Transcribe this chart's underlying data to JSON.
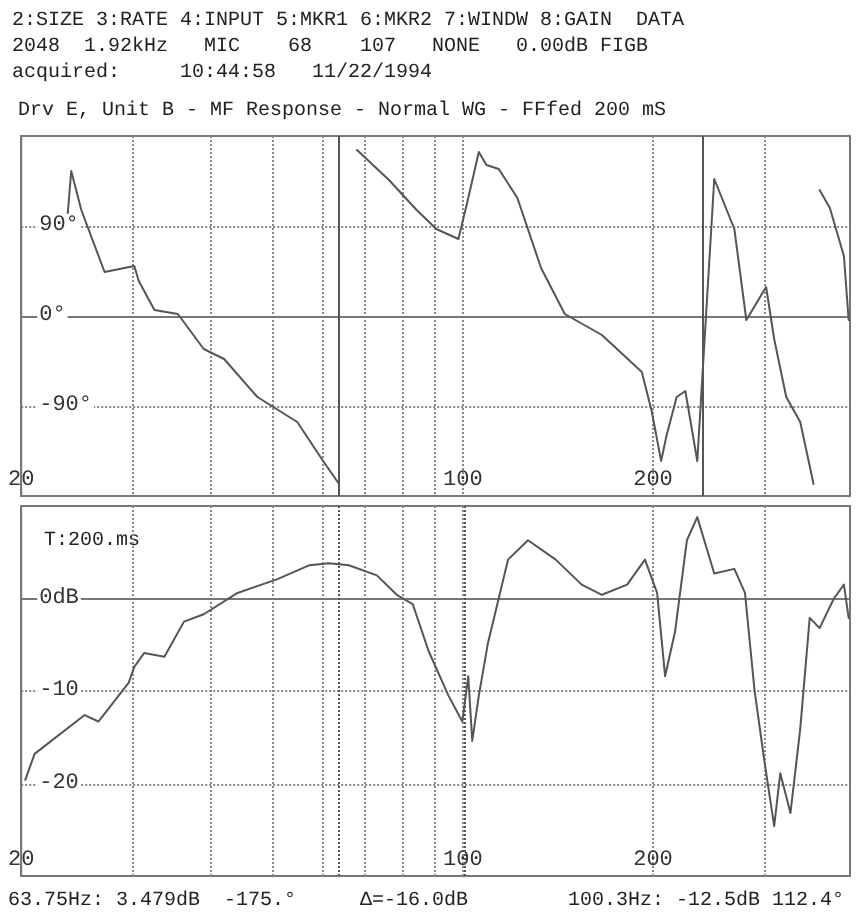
{
  "chart_data": [
    {
      "type": "line",
      "title": "Drv E, Unit B - MF Response - Normal WG - FFfed 200 mS",
      "annotations": [
        "2:SIZE 3:RATE 4:INPUT 5:MKR1 6:MKR2 7:WINDW 8:GAIN  DATA",
        "2048  1.92kHz   MIC    68    107   NONE   0.00dB FIGB",
        "acquired:     10:44:58   11/22/1994"
      ],
      "series": [
        {
          "color": "#555555",
          "x": [
            23.7,
            24.0,
            24.9,
            27.1,
            30.2,
            30.7,
            32.5,
            35.4,
            38.9,
            41.9,
            47.3,
            54.7,
            60.1,
            63.7,
            64.5,
            68.0,
            76.4,
            84.5,
            90.8,
            98.4,
            102,
            106,
            109,
            114,
            122,
            133,
            145,
            166,
            192,
            199,
            206,
            210,
            218,
            225,
            235,
            250,
            269,
            281,
            302,
            311,
            325,
            342,
            359,
            363,
            367,
            381,
            401,
            408
          ],
          "values": [
            103,
            145,
            106,
            44,
            50,
            35,
            6,
            2,
            -33,
            -43,
            -81,
            -106,
            -145,
            -168,
            null,
            166,
            136,
            106,
            87,
            77,
            118,
            164,
            151,
            147,
            118,
            48,
            2,
            -19,
            -56,
            -95,
            -145,
            -120,
            -81,
            -75,
            -145,
            137,
            87,
            -4,
            29,
            -23,
            -81,
            -106,
            -168,
            null,
            126,
            108,
            60,
            -4
          ]
        }
      ],
      "xlim": [
        20,
        410
      ],
      "xticks": [
        20,
        {
          "value": 30,
          "label": null
        },
        {
          "value": 40,
          "label": null
        },
        {
          "value": 50,
          "label": null
        },
        {
          "value": 60,
          "label": null
        },
        {
          "value": 70,
          "label": null
        },
        {
          "value": 80,
          "label": null
        },
        {
          "value": 90,
          "label": null
        },
        100,
        200,
        {
          "value": 300,
          "label": null
        }
      ],
      "ylim": [
        -180,
        180
      ],
      "yticks": [
        {
          "value": -90,
          "label": "-90°"
        },
        {
          "value": 0,
          "label": "0°"
        },
        {
          "value": 90,
          "label": "90°"
        }
      ],
      "log": "x",
      "grid": true,
      "marker": "none",
      "ref_lines": [
        {
          "axis": "x",
          "value": 63.75,
          "line_style": "solid",
          "color": "#555555"
        },
        {
          "axis": "x",
          "value": 240,
          "line_style": "solid",
          "color": "#555555"
        }
      ]
    },
    {
      "type": "line",
      "annotations": [
        "T:200.ms",
        "63.75Hz: 3.479dB  -175.°",
        "Δ=-16.0dB",
        "100.3Hz: -12.5dB 112.4°"
      ],
      "series": [
        {
          "color": "#555555",
          "x": [
            20.3,
            21.0,
            25.2,
            26.5,
            29.6,
            30.2,
            31.3,
            33.7,
            36.2,
            38.9,
            44.0,
            50.9,
            57.2,
            61.4,
            66.0,
            73.1,
            78.6,
            83.3,
            88.3,
            94.9,
            99.8,
            102,
            103.5,
            106,
            109.6,
            117.9,
            126.8,
            140.3,
            154.2,
            166,
            182,
            194.2,
            203,
            209,
            216.7,
            226.3,
            235,
            250,
            269,
            279.6,
            289.5,
            300,
            311,
            318,
            330,
            342,
            354,
            367,
            386.6,
            401,
            408
          ],
          "values": [
            -19.6,
            -16.8,
            -12.6,
            -13.3,
            -9.1,
            -7.4,
            -5.9,
            -6.3,
            -2.5,
            -1.7,
            0.6,
            2.1,
            3.6,
            3.8,
            3.6,
            2.5,
            0.4,
            -0.6,
            -5.7,
            -10.5,
            -13.3,
            -8.4,
            -15.4,
            -10.5,
            -4.8,
            4.2,
            6.3,
            4.2,
            1.5,
            0.4,
            1.5,
            4.2,
            0.6,
            -8.4,
            -3.6,
            6.3,
            8.8,
            2.7,
            3.2,
            0.6,
            -9.9,
            -17.5,
            -24.6,
            -18.9,
            -23.2,
            -14.1,
            -2.1,
            -3.2,
            0,
            1.5,
            -2.1
          ]
        }
      ],
      "xlim": [
        20,
        410
      ],
      "xticks": [
        20,
        {
          "value": 30,
          "label": null
        },
        {
          "value": 40,
          "label": null
        },
        {
          "value": 50,
          "label": null
        },
        {
          "value": 60,
          "label": null
        },
        {
          "value": 70,
          "label": null
        },
        {
          "value": 80,
          "label": null
        },
        {
          "value": 90,
          "label": null
        },
        100,
        200,
        {
          "value": 300,
          "label": null
        }
      ],
      "ylim": [
        -30,
        10
      ],
      "yticks": [
        {
          "value": -20,
          "label": "-20"
        },
        {
          "value": -10,
          "label": "-10"
        },
        {
          "value": 0,
          "label": "0dB"
        }
      ],
      "log": "x",
      "grid": true,
      "marker": "none",
      "ref_lines": [
        {
          "axis": "x",
          "value": 63.75,
          "line_style": "dotted",
          "color": "#555555"
        },
        {
          "axis": "x",
          "value": 100.3,
          "line_style": "dotted",
          "color": "#555555"
        }
      ]
    }
  ]
}
